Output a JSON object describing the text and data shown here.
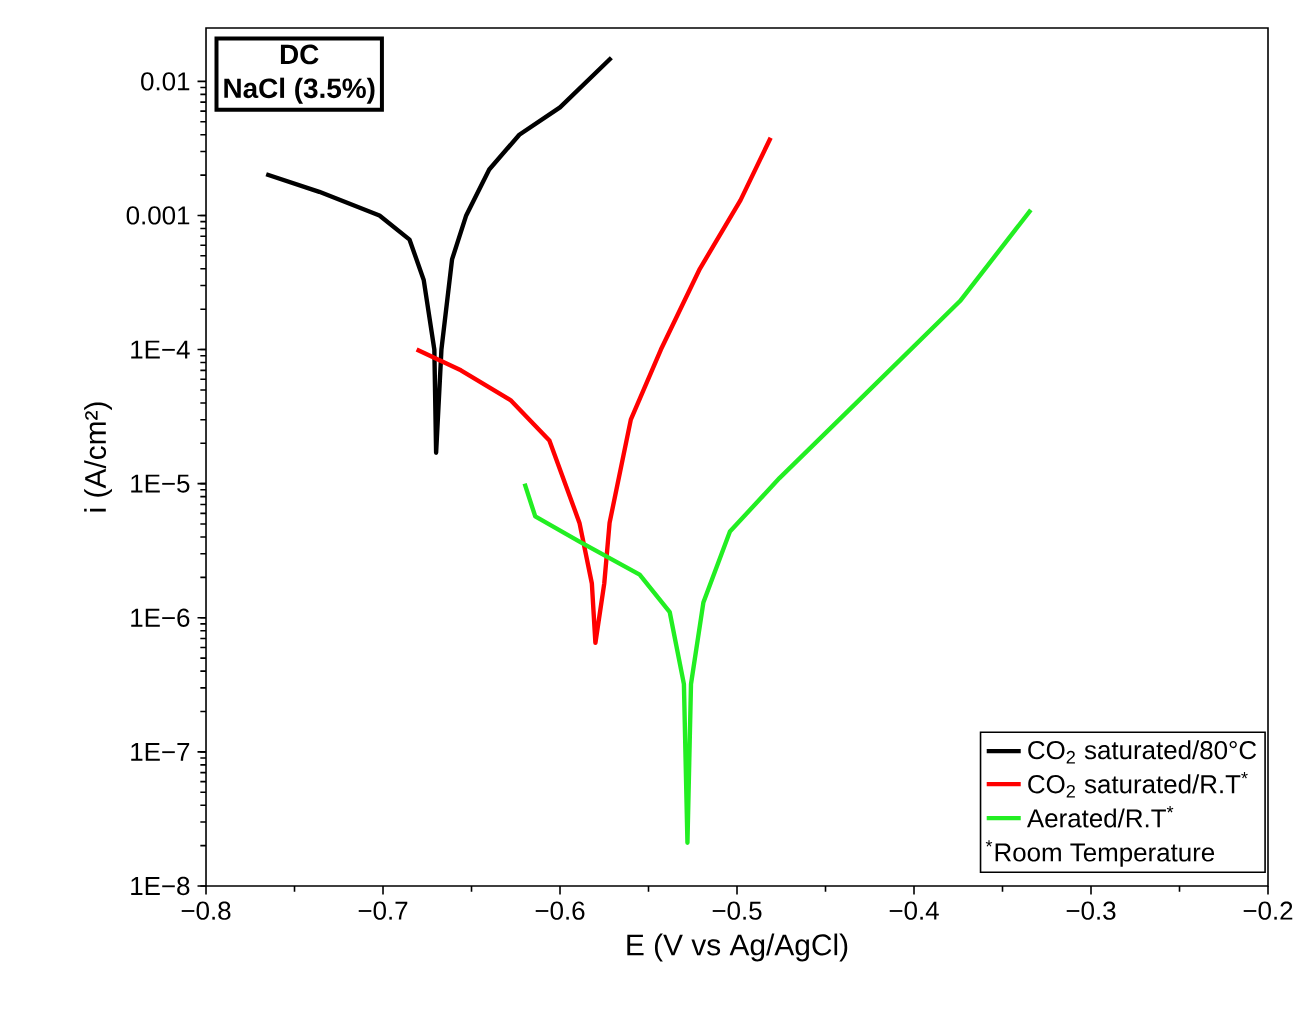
{
  "chart_data": {
    "type": "line",
    "xlabel": "E (V vs Ag/AgCl)",
    "ylabel": "i (A/cm²)",
    "annotations": [
      "**DC**",
      "**NaCl (3.5%)**",
      "$^{*}$Room Temperature"
    ],
    "log": "y",
    "legend": "bottom right",
    "grid": false,
    "marker": "none",
    "line_style": "solid",
    "xlim": [
      -0.8,
      -0.2
    ],
    "ylim": [
      1e-08,
      0.025
    ],
    "xticks": [
      {
        "value": -0.8,
        "label": "−0.8"
      },
      {
        "value": -0.7,
        "label": "−0.7"
      },
      {
        "value": -0.6,
        "label": "−0.6"
      },
      {
        "value": -0.5,
        "label": "−0.5"
      },
      {
        "value": -0.4,
        "label": "−0.4"
      },
      {
        "value": -0.3,
        "label": "−0.3"
      },
      {
        "value": -0.2,
        "label": "−0.2"
      }
    ],
    "yticks": [
      {
        "value": 1e-08,
        "label": "1E−8"
      },
      {
        "value": 1e-07,
        "label": "1E−7"
      },
      {
        "value": 1e-06,
        "label": "1E−6"
      },
      {
        "value": 1e-05,
        "label": "1E−5"
      },
      {
        "value": 0.0001,
        "label": "1E−4"
      },
      0.001,
      0.01
    ],
    "series": [
      {
        "name": "CO$_{2}$ saturated/80°C",
        "color": "#000000",
        "x": [
          -0.766,
          -0.736,
          -0.702,
          -0.685,
          -0.677,
          -0.671,
          -0.67,
          -0.667,
          -0.661,
          -0.653,
          -0.64,
          -0.623,
          -0.6,
          -0.571
        ],
        "values": [
          0.00203,
          0.0015,
          0.001,
          0.00066,
          0.00033,
          0.0001,
          1.7e-05,
          0.0001,
          0.00047,
          0.001,
          0.0022,
          0.004,
          0.0064,
          0.015
        ]
      },
      {
        "name": "CO$_{2}$ saturated/R.T$^{*}$",
        "color": "#ff0000",
        "x": [
          -0.681,
          -0.656,
          -0.628,
          -0.606,
          -0.589,
          -0.582,
          -0.58,
          -0.575,
          -0.572,
          -0.56,
          -0.543,
          -0.521,
          -0.498,
          -0.481
        ],
        "values": [
          0.0001,
          7e-05,
          4.2e-05,
          2.1e-05,
          5.1e-06,
          1.8e-06,
          6.5e-07,
          1.8e-06,
          5.1e-06,
          3e-05,
          0.0001,
          0.0004,
          0.0013,
          0.0038
        ]
      },
      {
        "name": "Aerated/R.T$^{*}$",
        "color": "#22ee22",
        "x": [
          -0.62,
          -0.614,
          -0.589,
          -0.555,
          -0.538,
          -0.53,
          -0.528,
          -0.526,
          -0.519,
          -0.504,
          -0.476,
          -0.431,
          -0.374,
          -0.334
        ],
        "values": [
          1e-05,
          5.7e-06,
          3.7e-06,
          2.1e-06,
          1.1e-06,
          3.2e-07,
          2.1e-08,
          3.2e-07,
          1.3e-06,
          4.4e-06,
          1.1e-05,
          4.2e-05,
          0.00023,
          0.0011
        ]
      }
    ]
  }
}
